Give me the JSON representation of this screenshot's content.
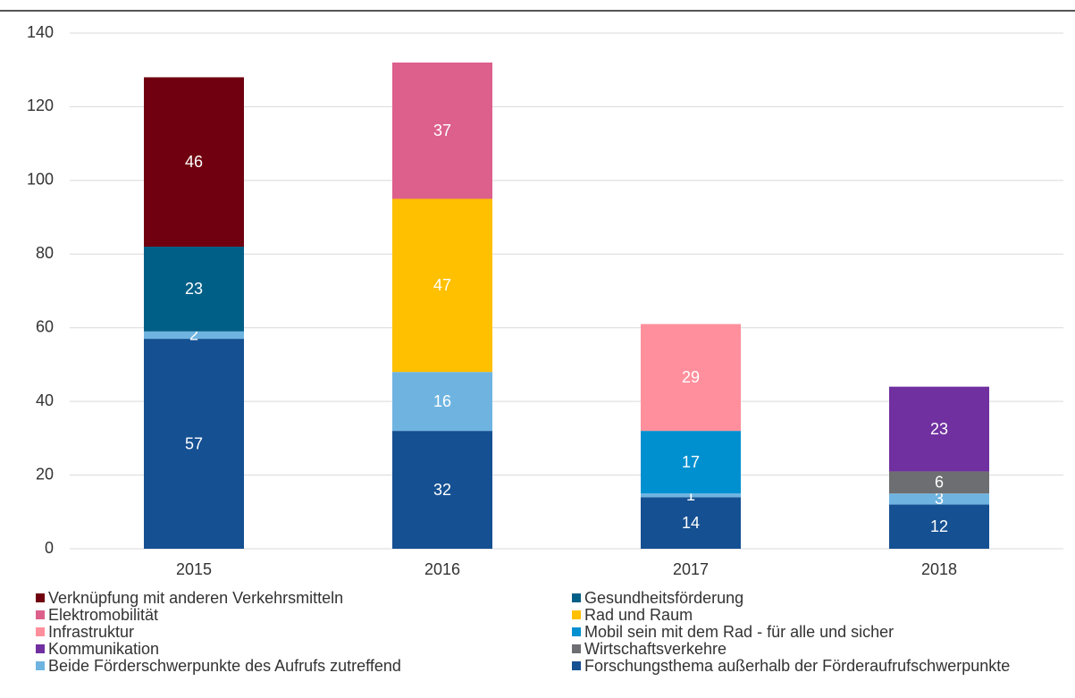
{
  "chart_data": {
    "type": "stacked_bar",
    "categories": [
      "2015",
      "2016",
      "2017",
      "2018"
    ],
    "series": [
      {
        "name": "Verknüpfung mit anderen Verkehrsmitteln",
        "color": "#70000f",
        "values": [
          46,
          null,
          null,
          null
        ]
      },
      {
        "name": "Gesundheitsförderung",
        "color": "#005f87",
        "values": [
          23,
          null,
          null,
          null
        ]
      },
      {
        "name": "Elektromobilität",
        "color": "#dc5f8c",
        "values": [
          null,
          37,
          null,
          null
        ]
      },
      {
        "name": "Rad und Raum",
        "color": "#ffc000",
        "values": [
          null,
          47,
          null,
          null
        ]
      },
      {
        "name": "Infrastruktur",
        "color": "#ff8f9c",
        "values": [
          null,
          null,
          29,
          null
        ]
      },
      {
        "name": "Mobil sein mit dem Rad - für alle und sicher",
        "color": "#0090d0",
        "values": [
          null,
          null,
          17,
          null
        ]
      },
      {
        "name": "Kommunikation",
        "color": "#7030a0",
        "values": [
          null,
          null,
          null,
          23
        ]
      },
      {
        "name": "Wirtschaftsverkehre",
        "color": "#6d6e71",
        "values": [
          null,
          null,
          null,
          6
        ]
      },
      {
        "name": "Beide Förderschwerpunkte des Aufrufs zutreffend",
        "color": "#6fb4e0",
        "values": [
          2,
          16,
          1,
          3
        ]
      },
      {
        "name": "Forschungsthema außerhalb der Förderaufrufschwerpunkte",
        "color": "#155092",
        "values": [
          57,
          32,
          14,
          12
        ]
      }
    ],
    "ylim": [
      0,
      140
    ],
    "yticks": [
      0,
      20,
      40,
      60,
      80,
      100,
      120,
      140
    ],
    "grid": true,
    "legend": "bottom"
  }
}
